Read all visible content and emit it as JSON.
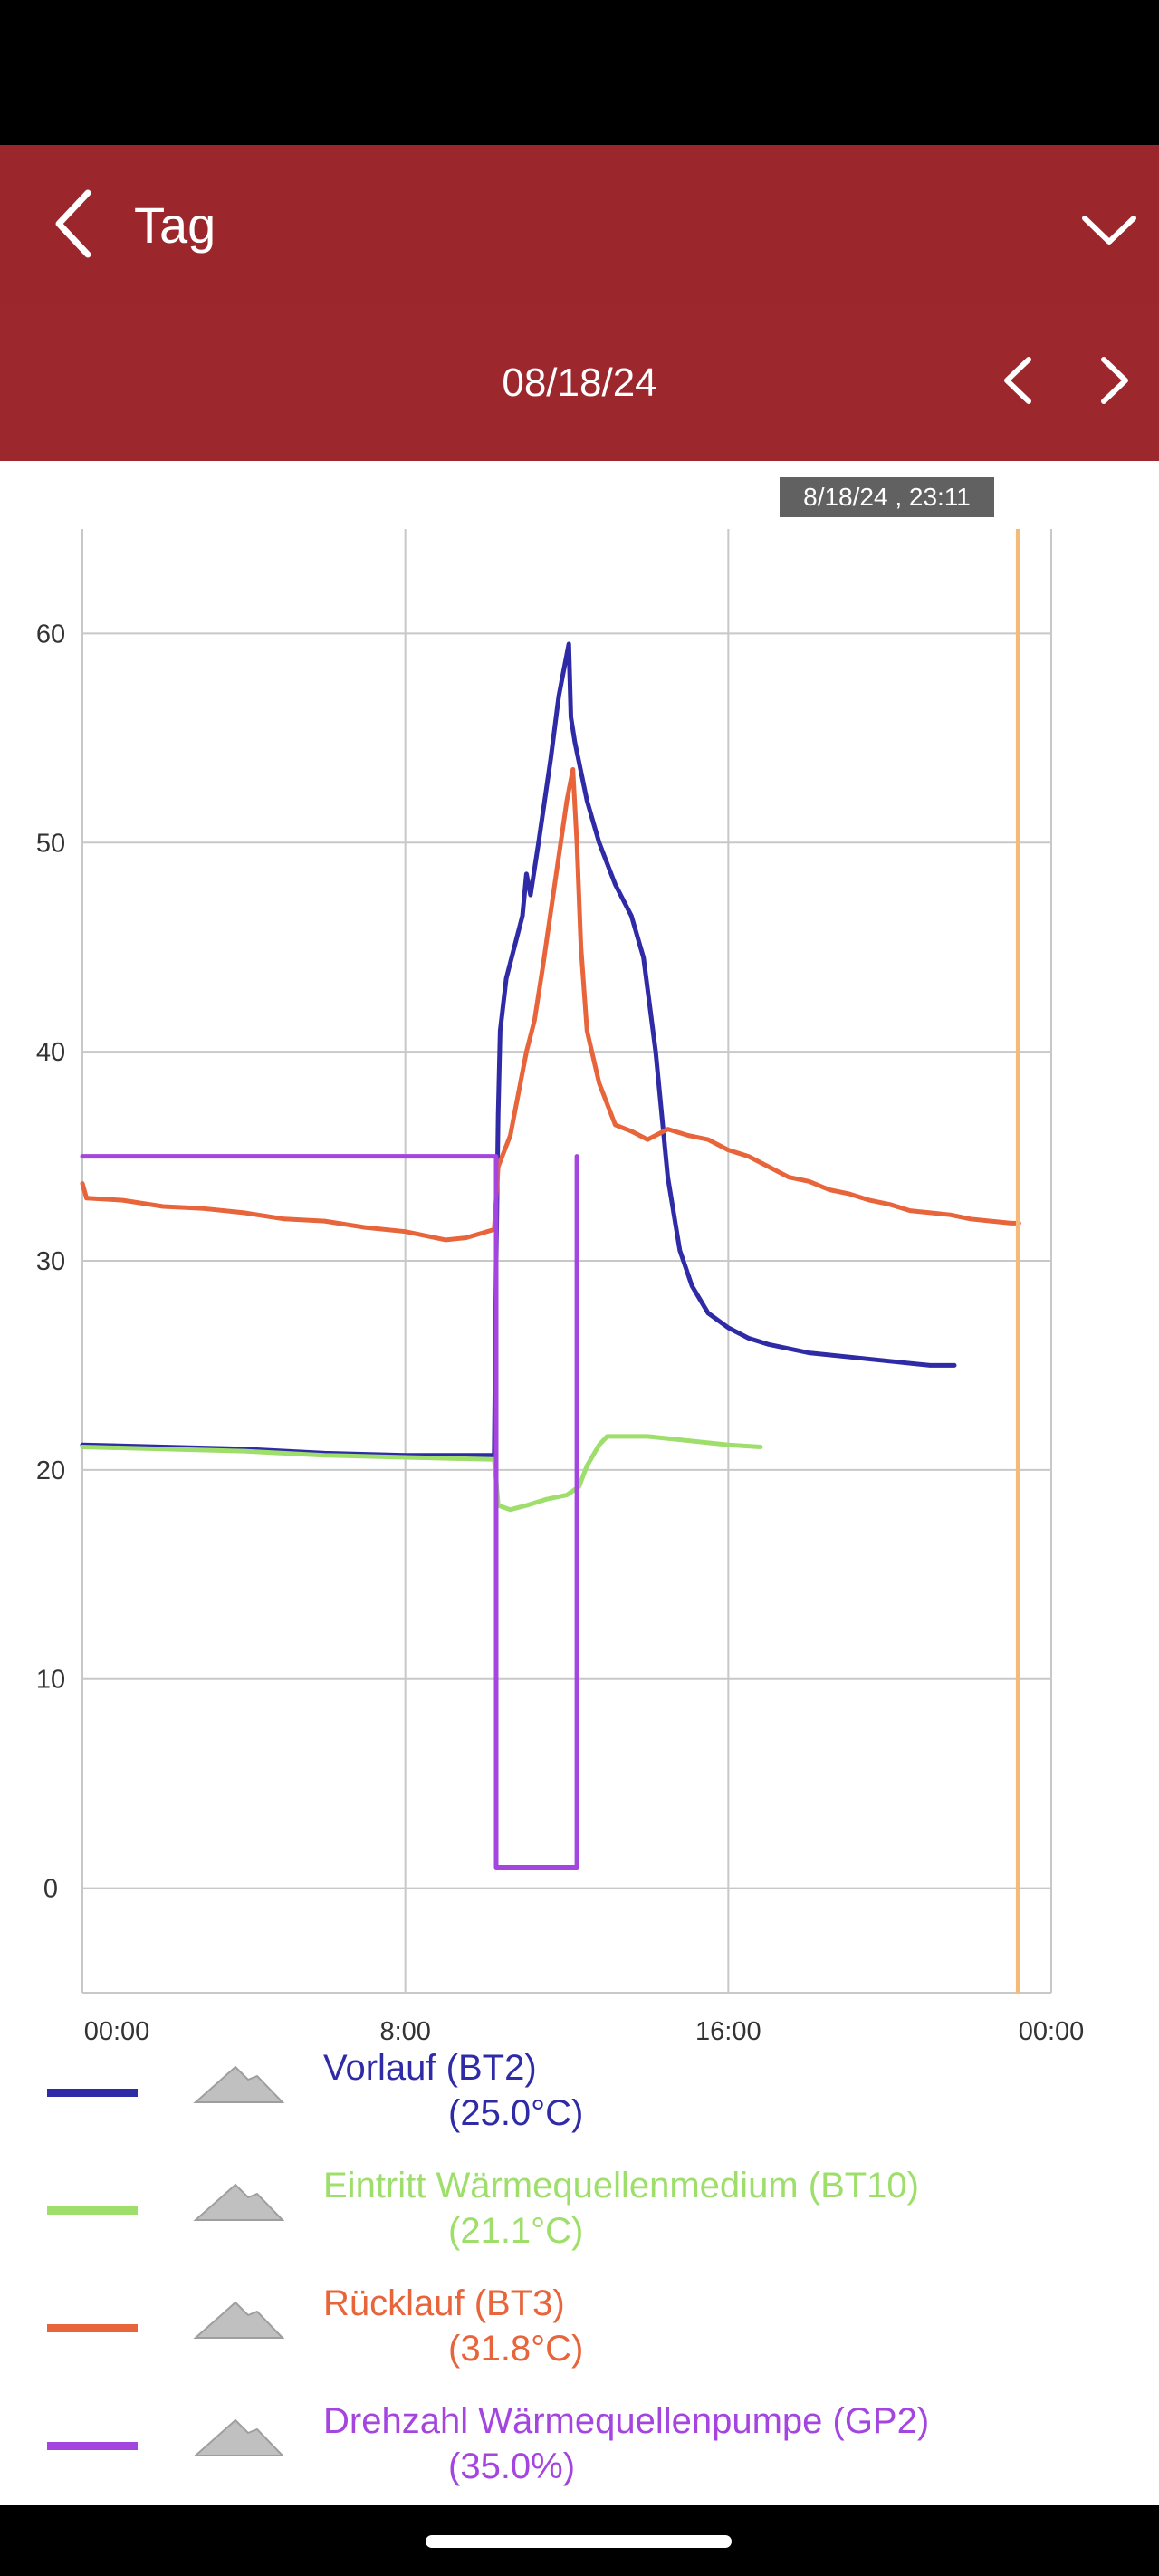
{
  "header": {
    "title": "Tag",
    "date": "08/18/24"
  },
  "tooltip": {
    "text": "8/18/24 , 23:11"
  },
  "chart_data": {
    "type": "line",
    "xlabel": "",
    "ylabel": "",
    "x_ticks": [
      "00:00",
      "8:00",
      "16:00",
      "00:00"
    ],
    "y_ticks": [
      "60",
      "50",
      "40",
      "30",
      "20",
      "10",
      "0"
    ],
    "xlim": [
      0,
      24
    ],
    "ylim": [
      -5,
      65
    ],
    "grid": true,
    "cursor_x": 23.18,
    "colors": {
      "cursor": "#f4bb78"
    },
    "series": [
      {
        "name": "Vorlauf (BT2)",
        "color": "#2f2aa6",
        "points": [
          [
            0,
            21.2
          ],
          [
            2,
            21.1
          ],
          [
            4,
            21
          ],
          [
            6,
            20.8
          ],
          [
            8,
            20.7
          ],
          [
            10.2,
            20.7
          ],
          [
            10.25,
            30
          ],
          [
            10.3,
            37
          ],
          [
            10.35,
            41
          ],
          [
            10.5,
            43.5
          ],
          [
            10.9,
            46.5
          ],
          [
            11,
            48.5
          ],
          [
            11.1,
            47.5
          ],
          [
            11.3,
            50
          ],
          [
            11.6,
            54
          ],
          [
            11.8,
            57
          ],
          [
            11.9,
            58
          ],
          [
            12.05,
            59.5
          ],
          [
            12.1,
            56
          ],
          [
            12.2,
            54.8
          ],
          [
            12.5,
            52
          ],
          [
            12.8,
            50
          ],
          [
            13.2,
            48
          ],
          [
            13.6,
            46.5
          ],
          [
            13.9,
            44.5
          ],
          [
            14.2,
            40
          ],
          [
            14.5,
            34
          ],
          [
            14.8,
            30.5
          ],
          [
            15.1,
            28.8
          ],
          [
            15.5,
            27.5
          ],
          [
            16,
            26.8
          ],
          [
            16.5,
            26.3
          ],
          [
            17,
            26
          ],
          [
            18,
            25.6
          ],
          [
            19,
            25.4
          ],
          [
            20,
            25.2
          ],
          [
            21,
            25
          ],
          [
            21.6,
            25
          ]
        ]
      },
      {
        "name": "Eintritt Wärmequellenmedium (BT10)",
        "color": "#9ede6a",
        "points": [
          [
            0,
            21.1
          ],
          [
            2,
            21
          ],
          [
            4,
            20.9
          ],
          [
            6,
            20.7
          ],
          [
            8,
            20.6
          ],
          [
            10.2,
            20.5
          ],
          [
            10.25,
            19.5
          ],
          [
            10.3,
            18.3
          ],
          [
            10.6,
            18.1
          ],
          [
            11,
            18.3
          ],
          [
            11.5,
            18.6
          ],
          [
            12,
            18.8
          ],
          [
            12.3,
            19.2
          ],
          [
            12.5,
            20.2
          ],
          [
            12.8,
            21.2
          ],
          [
            13,
            21.6
          ],
          [
            14,
            21.6
          ],
          [
            15,
            21.4
          ],
          [
            16,
            21.2
          ],
          [
            16.8,
            21.1
          ]
        ]
      },
      {
        "name": "Rücklauf (BT3)",
        "color": "#e8643a",
        "points": [
          [
            0,
            33.7
          ],
          [
            0.1,
            33
          ],
          [
            1,
            32.9
          ],
          [
            2,
            32.6
          ],
          [
            3,
            32.5
          ],
          [
            4,
            32.3
          ],
          [
            5,
            32
          ],
          [
            6,
            31.9
          ],
          [
            7,
            31.6
          ],
          [
            8,
            31.4
          ],
          [
            9,
            31
          ],
          [
            9.5,
            31.1
          ],
          [
            10.2,
            31.5
          ],
          [
            10.3,
            34.5
          ],
          [
            10.6,
            36
          ],
          [
            11,
            40
          ],
          [
            11.2,
            41.5
          ],
          [
            11.4,
            44
          ],
          [
            11.7,
            48
          ],
          [
            12,
            52
          ],
          [
            12.15,
            53.5
          ],
          [
            12.25,
            50
          ],
          [
            12.35,
            45
          ],
          [
            12.5,
            41
          ],
          [
            12.8,
            38.5
          ],
          [
            13.2,
            36.5
          ],
          [
            13.6,
            36.2
          ],
          [
            14,
            35.8
          ],
          [
            14.5,
            36.3
          ],
          [
            15,
            36
          ],
          [
            15.5,
            35.8
          ],
          [
            16,
            35.3
          ],
          [
            16.5,
            35
          ],
          [
            17,
            34.5
          ],
          [
            17.5,
            34
          ],
          [
            18,
            33.8
          ],
          [
            18.5,
            33.4
          ],
          [
            19,
            33.2
          ],
          [
            19.5,
            32.9
          ],
          [
            20,
            32.7
          ],
          [
            20.5,
            32.4
          ],
          [
            21,
            32.3
          ],
          [
            21.5,
            32.2
          ],
          [
            22,
            32
          ],
          [
            22.5,
            31.9
          ],
          [
            23,
            31.8
          ],
          [
            23.2,
            31.8
          ]
        ]
      },
      {
        "name": "Drehzahl Wärmequellenpumpe (GP2)",
        "color": "#a445e0",
        "points": [
          [
            0,
            35
          ],
          [
            10.25,
            35
          ],
          [
            10.25,
            1
          ],
          [
            12.25,
            1
          ],
          [
            12.25,
            35
          ]
        ]
      }
    ]
  },
  "legend": [
    {
      "label": "Vorlauf (BT2)",
      "value": "(25.0°C)",
      "color": "#2f2aa6"
    },
    {
      "label": "Eintritt Wärmequellenmedium (BT10)",
      "value": "(21.1°C)",
      "color": "#9ede6a"
    },
    {
      "label": "Rücklauf (BT3)",
      "value": "(31.8°C)",
      "color": "#e8643a"
    },
    {
      "label": "Drehzahl Wärmequellenpumpe (GP2)",
      "value": "(35.0%)",
      "color": "#a445e0"
    }
  ]
}
